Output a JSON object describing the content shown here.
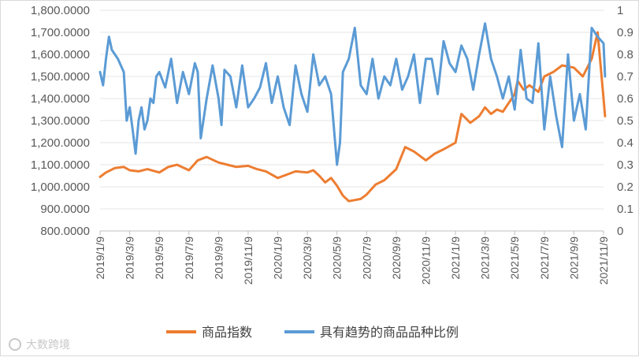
{
  "chart_data": {
    "type": "line",
    "title": "",
    "categories": [
      "2019/1/9",
      "2019/3/9",
      "2019/5/9",
      "2019/7/9",
      "2019/9/9",
      "2019/11/9",
      "2020/1/9",
      "2020/3/9",
      "2020/5/9",
      "2020/7/9",
      "2020/9/9",
      "2020/11/9",
      "2021/1/9",
      "2021/3/9",
      "2021/5/9",
      "2021/7/9",
      "2021/9/9",
      "2021/11/9"
    ],
    "y_left": {
      "ticks": [
        "800.0000",
        "900.0000",
        "1,000.0000",
        "1,100.0000",
        "1,200.0000",
        "1,300.0000",
        "1,400.0000",
        "1,500.0000",
        "1,600.0000",
        "1,700.0000",
        "1,800.0000"
      ],
      "ylim": [
        800,
        1800
      ]
    },
    "y_right": {
      "ticks": [
        "0",
        "0.1",
        "0.2",
        "0.3",
        "0.4",
        "0.5",
        "0.6",
        "0.7",
        "0.8",
        "0.9",
        "1"
      ],
      "ylim": [
        0,
        1
      ]
    },
    "series": [
      {
        "name": "商品指数",
        "axis": "left",
        "color": "#ED7D31",
        "x": [
          0,
          0.2,
          0.5,
          0.8,
          1,
          1.3,
          1.6,
          2,
          2.3,
          2.6,
          3,
          3.3,
          3.6,
          4,
          4.3,
          4.6,
          5,
          5.3,
          5.6,
          6,
          6.3,
          6.6,
          7,
          7.2,
          7.4,
          7.6,
          7.8,
          8,
          8.2,
          8.4,
          8.6,
          8.8,
          9,
          9.3,
          9.6,
          10,
          10.3,
          10.6,
          11,
          11.3,
          11.6,
          12,
          12.2,
          12.5,
          12.8,
          13,
          13.2,
          13.4,
          13.6,
          14,
          14.1,
          14.3,
          14.5,
          14.8,
          15,
          15.3,
          15.6,
          16,
          16.3,
          16.6,
          16.8,
          17,
          17.05
        ],
        "values": [
          1045,
          1065,
          1085,
          1090,
          1075,
          1070,
          1080,
          1065,
          1090,
          1100,
          1075,
          1120,
          1135,
          1110,
          1100,
          1090,
          1095,
          1080,
          1070,
          1040,
          1055,
          1070,
          1065,
          1075,
          1050,
          1020,
          1040,
          1005,
          960,
          935,
          940,
          945,
          965,
          1010,
          1030,
          1080,
          1180,
          1160,
          1120,
          1150,
          1170,
          1200,
          1330,
          1290,
          1320,
          1360,
          1330,
          1350,
          1340,
          1420,
          1480,
          1440,
          1460,
          1430,
          1500,
          1520,
          1550,
          1540,
          1500,
          1580,
          1700,
          1400,
          1320
        ]
      },
      {
        "name": "具有趋势的商品品种比例",
        "axis": "right",
        "color": "#5B9BD5",
        "x": [
          0,
          0.1,
          0.2,
          0.3,
          0.4,
          0.5,
          0.6,
          0.8,
          0.9,
          1,
          1.1,
          1.2,
          1.3,
          1.4,
          1.5,
          1.6,
          1.7,
          1.8,
          1.9,
          2,
          2.2,
          2.4,
          2.6,
          2.8,
          3,
          3.2,
          3.3,
          3.4,
          3.6,
          3.8,
          4,
          4.1,
          4.2,
          4.4,
          4.6,
          4.8,
          5,
          5.2,
          5.4,
          5.6,
          5.8,
          6,
          6.2,
          6.4,
          6.6,
          6.8,
          7,
          7.2,
          7.4,
          7.6,
          7.8,
          8,
          8.1,
          8.2,
          8.4,
          8.6,
          8.8,
          9,
          9.2,
          9.4,
          9.6,
          9.8,
          10,
          10.2,
          10.4,
          10.6,
          10.8,
          11,
          11.2,
          11.4,
          11.6,
          11.8,
          12,
          12.2,
          12.4,
          12.6,
          12.8,
          13,
          13.2,
          13.4,
          13.6,
          13.8,
          14,
          14.2,
          14.4,
          14.6,
          14.8,
          15,
          15.2,
          15.4,
          15.6,
          15.8,
          16,
          16.2,
          16.4,
          16.6,
          16.8,
          17,
          17.05
        ],
        "values": [
          0.72,
          0.66,
          0.78,
          0.88,
          0.82,
          0.8,
          0.78,
          0.72,
          0.5,
          0.56,
          0.46,
          0.35,
          0.5,
          0.56,
          0.46,
          0.5,
          0.6,
          0.58,
          0.7,
          0.72,
          0.65,
          0.78,
          0.58,
          0.72,
          0.62,
          0.76,
          0.72,
          0.42,
          0.6,
          0.75,
          0.6,
          0.48,
          0.73,
          0.7,
          0.56,
          0.75,
          0.56,
          0.6,
          0.65,
          0.76,
          0.58,
          0.7,
          0.56,
          0.48,
          0.75,
          0.62,
          0.54,
          0.8,
          0.66,
          0.7,
          0.62,
          0.3,
          0.4,
          0.72,
          0.78,
          0.92,
          0.66,
          0.62,
          0.78,
          0.6,
          0.7,
          0.66,
          0.78,
          0.64,
          0.7,
          0.8,
          0.58,
          0.78,
          0.78,
          0.62,
          0.86,
          0.76,
          0.72,
          0.84,
          0.78,
          0.64,
          0.8,
          0.94,
          0.78,
          0.7,
          0.6,
          0.7,
          0.55,
          0.82,
          0.6,
          0.58,
          0.85,
          0.46,
          0.7,
          0.52,
          0.38,
          0.8,
          0.5,
          0.62,
          0.46,
          0.92,
          0.88,
          0.85,
          0.7
        ]
      }
    ],
    "legend": [
      "商品指数",
      "具有趋势的商品品种比例"
    ],
    "legend_position": "bottom"
  },
  "watermark": "大数跨境"
}
